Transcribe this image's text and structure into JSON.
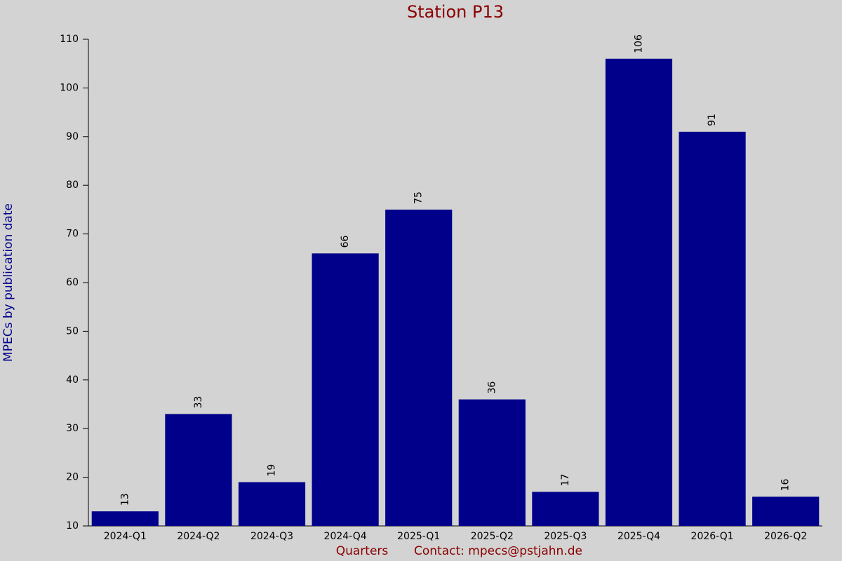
{
  "chart_data": {
    "type": "bar",
    "title": "Station P13",
    "x_label": "Quarters",
    "contact": "Contact: mpecs@pstjahn.de",
    "y_label": "MPECs by publication date",
    "categories": [
      "2024-Q1",
      "2024-Q2",
      "2024-Q3",
      "2024-Q4",
      "2025-Q1",
      "2025-Q2",
      "2025-Q3",
      "2025-Q4",
      "2026-Q1",
      "2026-Q2"
    ],
    "values": [
      13,
      33,
      19,
      66,
      75,
      36,
      17,
      106,
      91,
      16
    ],
    "color": "#00008b",
    "ylim": [
      10,
      110
    ],
    "yticks": [
      10,
      20,
      30,
      40,
      50,
      60,
      70,
      80,
      90,
      100,
      110
    ],
    "grid": false
  }
}
